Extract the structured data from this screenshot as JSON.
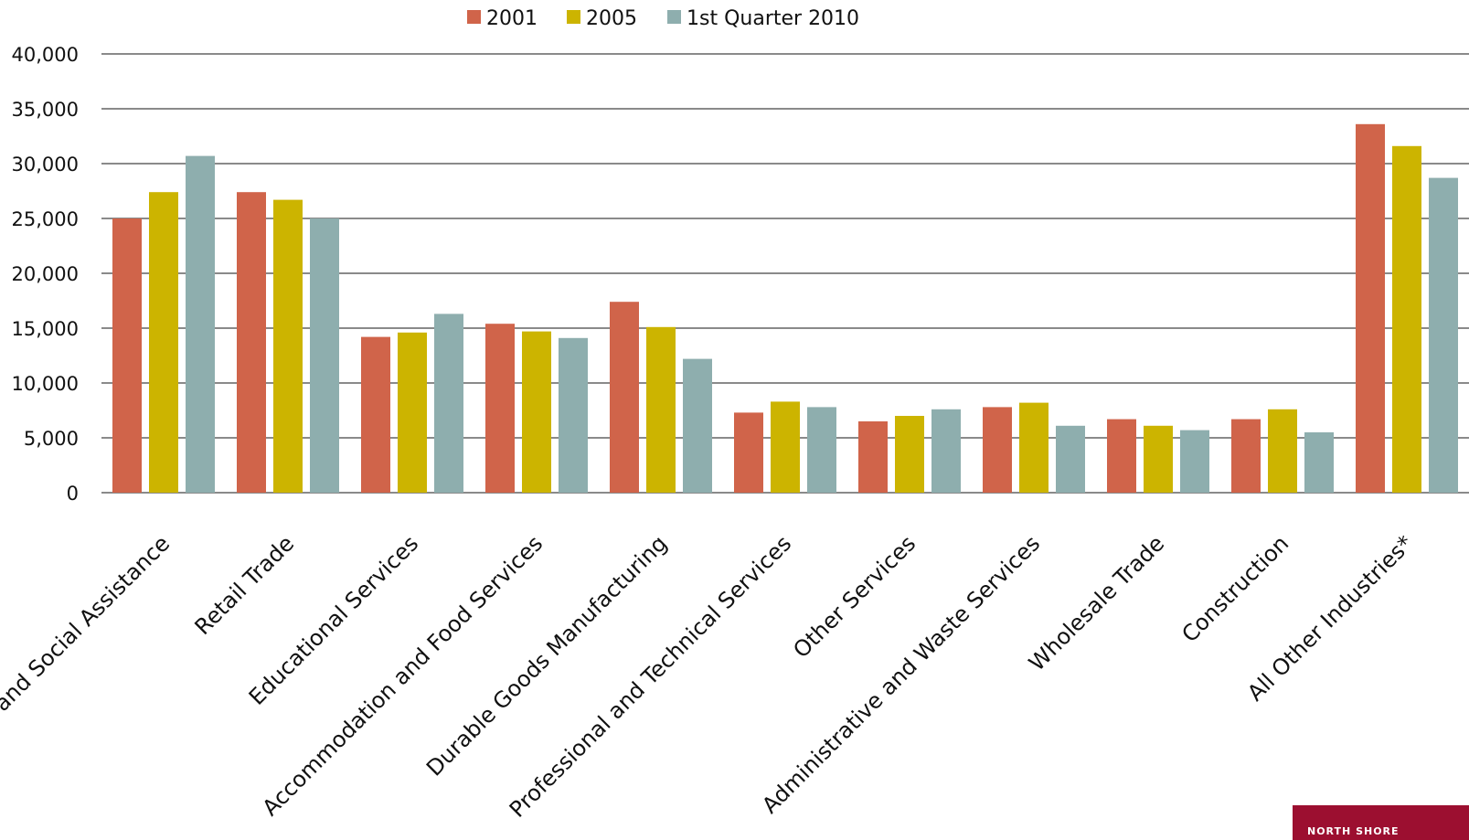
{
  "chart_data": {
    "type": "bar",
    "title": "",
    "xlabel": "",
    "ylabel": "",
    "categories": [
      "Health Care and Social Assistance",
      "Retail Trade",
      "Educational Services",
      "Accommodation and Food Services",
      "Durable Goods Manufacturing",
      "Professional and Technical Services",
      "Other Services",
      "Administrative and Waste Services",
      "Wholesale Trade",
      "Construction",
      "All Other Industries*"
    ],
    "series": [
      {
        "name": "2001",
        "color": "#d0644a",
        "values": [
          25000,
          27400,
          14200,
          15400,
          17400,
          7300,
          6500,
          7800,
          6700,
          6700,
          33600
        ]
      },
      {
        "name": "2005",
        "color": "#ccb400",
        "values": [
          27400,
          26700,
          14600,
          14700,
          15100,
          8300,
          7000,
          8200,
          6100,
          7600,
          31600
        ]
      },
      {
        "name": "1st Quarter 2010",
        "color": "#8eaeae",
        "values": [
          30700,
          25000,
          16300,
          14100,
          12200,
          7800,
          7600,
          6100,
          5700,
          5500,
          28700
        ]
      }
    ],
    "ylim": [
      0,
      40000
    ],
    "yticks": [
      0,
      5000,
      10000,
      15000,
      20000,
      25000,
      30000,
      35000,
      40000
    ],
    "ytick_labels": [
      "0",
      "5,000",
      "10,000",
      "15,000",
      "20,000",
      "25,000",
      "30,000",
      "35,000",
      "40,000"
    ],
    "grid": true,
    "legend_position": "top-center"
  },
  "logo": {
    "text": "NORTH SHORE",
    "background": "#9c0f30"
  }
}
